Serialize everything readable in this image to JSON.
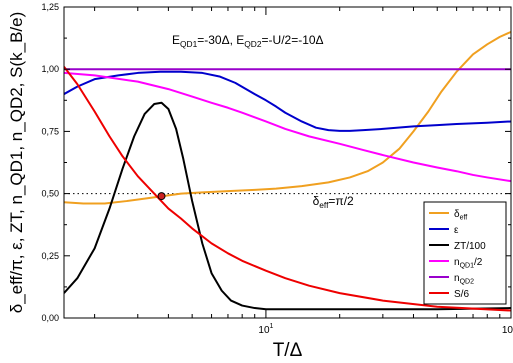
{
  "chart_data": {
    "type": "line",
    "title": "",
    "xlabel": "T/Δ",
    "ylabel": "δ_eff/π, ε, ZT, n_QD1, n_QD2, S(k_B/e)",
    "x_scale": "log",
    "xlim": [
      1.5,
      100
    ],
    "ylim": [
      0,
      1.25
    ],
    "x_ticks": [
      {
        "value": 10,
        "label": "10",
        "sup": "1"
      },
      {
        "value": 100,
        "label": "10",
        "sup": ""
      }
    ],
    "y_ticks": [
      "0,00",
      "0,25",
      "0,50",
      "0,75",
      "1,00",
      "1,25"
    ],
    "y_tick_values": [
      0,
      0.25,
      0.5,
      0.75,
      1.0,
      1.25
    ],
    "annotation_params": {
      "text": "E",
      "parts": [
        {
          "t": "E"
        },
        {
          "t": "QD1",
          "sub": true
        },
        {
          "t": "=-30Δ, E"
        },
        {
          "t": "QD2",
          "sub": true
        },
        {
          "t": "=-U/2=-10Δ"
        }
      ]
    },
    "annotation_reference": {
      "parts": [
        {
          "t": "δ"
        },
        {
          "t": "eff",
          "sub": true
        },
        {
          "t": "=π/2"
        }
      ],
      "at": [
        15.5,
        0.455
      ]
    },
    "reference_line": {
      "y": 0.5,
      "style": "dotted",
      "color": "#000000"
    },
    "marker": {
      "x": 3.75,
      "y": 0.49,
      "color": "#cc2222"
    },
    "legend_position": "bottom-right",
    "series": [
      {
        "name": "δ_eff",
        "legend": [
          {
            "t": "δ"
          },
          {
            "t": "eff",
            "sub": true
          }
        ],
        "color": "#f0a020",
        "x": [
          1.5,
          1.8,
          2.2,
          2.7,
          3.2,
          3.8,
          4.5,
          5.5,
          7,
          9,
          11,
          14,
          18,
          22,
          26,
          30,
          35,
          40,
          46,
          52,
          60,
          70,
          80,
          90,
          100
        ],
        "y": [
          0.465,
          0.46,
          0.46,
          0.47,
          0.48,
          0.49,
          0.5,
          0.505,
          0.51,
          0.515,
          0.52,
          0.53,
          0.545,
          0.565,
          0.59,
          0.625,
          0.68,
          0.75,
          0.83,
          0.91,
          0.99,
          1.06,
          1.1,
          1.13,
          1.15
        ]
      },
      {
        "name": "ε",
        "legend": [
          {
            "t": "ε"
          }
        ],
        "color": "#0000cc",
        "x": [
          1.5,
          1.7,
          2.0,
          2.5,
          3.0,
          3.7,
          4.5,
          5.5,
          6.5,
          7.5,
          9,
          10,
          11,
          12,
          14,
          16,
          18,
          20,
          22,
          25,
          30,
          40,
          50,
          60,
          80,
          100
        ],
        "y": [
          0.9,
          0.93,
          0.96,
          0.975,
          0.985,
          0.99,
          0.99,
          0.985,
          0.97,
          0.945,
          0.9,
          0.875,
          0.85,
          0.825,
          0.79,
          0.765,
          0.755,
          0.752,
          0.752,
          0.755,
          0.76,
          0.77,
          0.775,
          0.78,
          0.785,
          0.79
        ]
      },
      {
        "name": "ZT/100",
        "legend": [
          {
            "t": "ZT/100"
          }
        ],
        "color": "#000000",
        "x": [
          1.5,
          1.7,
          2.0,
          2.3,
          2.6,
          2.9,
          3.2,
          3.5,
          3.75,
          4.0,
          4.3,
          4.6,
          5.0,
          5.5,
          6.0,
          6.6,
          7.2,
          8.0,
          9.0,
          10,
          12,
          15,
          20,
          30,
          50,
          100
        ],
        "y": [
          0.1,
          0.16,
          0.28,
          0.44,
          0.6,
          0.73,
          0.82,
          0.86,
          0.865,
          0.84,
          0.76,
          0.64,
          0.47,
          0.3,
          0.18,
          0.11,
          0.07,
          0.05,
          0.04,
          0.035,
          0.035,
          0.035,
          0.035,
          0.035,
          0.035,
          0.04
        ]
      },
      {
        "name": "n_QD1/2",
        "legend": [
          {
            "t": "n"
          },
          {
            "t": "QD1",
            "sub": true
          },
          {
            "t": "/2"
          }
        ],
        "color": "#ff00ff",
        "x": [
          1.5,
          2,
          3,
          4,
          5,
          6,
          7,
          8,
          10,
          12,
          15,
          20,
          25,
          30,
          40,
          50,
          60,
          70,
          80,
          100
        ],
        "y": [
          0.985,
          0.975,
          0.95,
          0.92,
          0.89,
          0.865,
          0.845,
          0.825,
          0.79,
          0.76,
          0.73,
          0.7,
          0.675,
          0.655,
          0.625,
          0.605,
          0.59,
          0.575,
          0.565,
          0.55
        ]
      },
      {
        "name": "n_QD2",
        "legend": [
          {
            "t": "n"
          },
          {
            "t": "QD2",
            "sub": true
          }
        ],
        "color": "#9900cc",
        "x": [
          1.5,
          100
        ],
        "y": [
          1.0,
          1.0
        ]
      },
      {
        "name": "S/6",
        "legend": [
          {
            "t": "S/6"
          }
        ],
        "color": "#ee0000",
        "x": [
          1.5,
          1.7,
          2.0,
          2.3,
          2.6,
          3.0,
          3.5,
          4.0,
          4.5,
          5.0,
          6.0,
          7.0,
          8.0,
          10,
          12,
          15,
          20,
          30,
          50,
          100
        ],
        "y": [
          1.01,
          0.94,
          0.83,
          0.73,
          0.65,
          0.57,
          0.5,
          0.44,
          0.4,
          0.36,
          0.3,
          0.26,
          0.23,
          0.19,
          0.16,
          0.13,
          0.1,
          0.07,
          0.045,
          0.03
        ]
      }
    ]
  }
}
